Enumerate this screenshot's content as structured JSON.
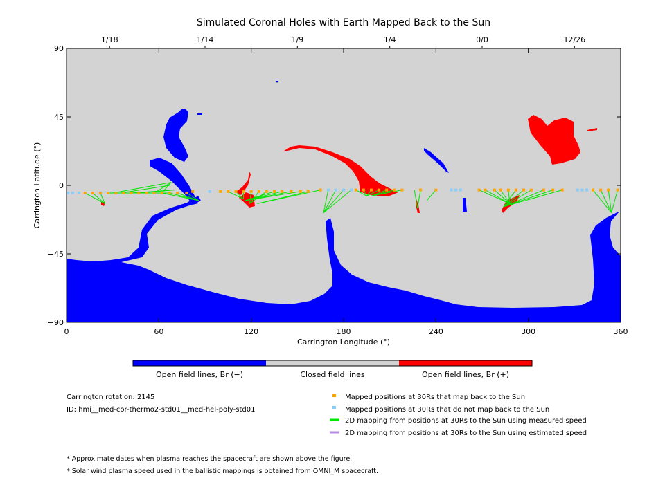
{
  "chart_data": {
    "type": "map",
    "title": "Simulated Coronal Holes with Earth Mapped Back to the Sun",
    "xlabel": "Carrington Longitude (°)",
    "ylabel": "Carrington Latitude (°)",
    "xlim": [
      0,
      360
    ],
    "ylim": [
      -90,
      90
    ],
    "x_ticks": [
      0,
      60,
      120,
      180,
      240,
      300,
      360
    ],
    "y_ticks": [
      90,
      45,
      0,
      -45,
      -90
    ],
    "y_tick_labels": [
      "90",
      "45",
      "0",
      "−45",
      "−90"
    ],
    "top_axis": {
      "labels": [
        "1/18",
        "1/14",
        "1/9",
        "1/4",
        "0/0",
        "12/26"
      ],
      "longitudes": [
        28,
        90,
        150,
        210,
        270,
        330
      ]
    },
    "colors": {
      "negative": "#0000ff",
      "closed": "#d3d3d3",
      "positive": "#ff0000",
      "mapped": "#ffa500",
      "unmapped": "#87cefa",
      "measured": "#00e600",
      "estimated": "#b987ee"
    },
    "colorbar": {
      "labels": [
        "Open field lines, Br (−)",
        "Closed field lines",
        "Open field lines, Br (+)"
      ]
    },
    "mapped_points": [
      [
        12,
        -5
      ],
      [
        17,
        -5
      ],
      [
        22,
        -5
      ],
      [
        27,
        -5
      ],
      [
        32,
        -5
      ],
      [
        37,
        -5
      ],
      [
        42,
        -5
      ],
      [
        47,
        -5
      ],
      [
        52,
        -5
      ],
      [
        57,
        -5
      ],
      [
        62,
        -5
      ],
      [
        67,
        -5
      ],
      [
        72,
        -5
      ],
      [
        78,
        -5
      ],
      [
        82,
        -4
      ],
      [
        100,
        -4
      ],
      [
        105,
        -4
      ],
      [
        110,
        -4
      ],
      [
        115,
        -4
      ],
      [
        120,
        -4
      ],
      [
        125,
        -4
      ],
      [
        130,
        -4
      ],
      [
        135,
        -4
      ],
      [
        140,
        -4
      ],
      [
        146,
        -4
      ],
      [
        152,
        -4
      ],
      [
        157,
        -4
      ],
      [
        165,
        -3
      ],
      [
        188,
        -3
      ],
      [
        193,
        -3
      ],
      [
        198,
        -3
      ],
      [
        203,
        -3
      ],
      [
        208,
        -3
      ],
      [
        213,
        -3
      ],
      [
        218,
        -3
      ],
      [
        230,
        -3
      ],
      [
        240,
        -3
      ],
      [
        268,
        -3
      ],
      [
        272,
        -3
      ],
      [
        278,
        -3
      ],
      [
        282,
        -3
      ],
      [
        287,
        -3
      ],
      [
        292,
        -3
      ],
      [
        297,
        -3
      ],
      [
        302,
        -3
      ],
      [
        310,
        -3
      ],
      [
        316,
        -3
      ],
      [
        322,
        -3
      ],
      [
        342,
        -3
      ],
      [
        347,
        -3
      ],
      [
        352,
        -3
      ],
      [
        358,
        -3
      ]
    ],
    "unmapped_points": [
      [
        1,
        -5
      ],
      [
        4,
        -5
      ],
      [
        8,
        -5
      ],
      [
        93,
        -4
      ],
      [
        170,
        -3
      ],
      [
        175,
        -3
      ],
      [
        180,
        -3
      ],
      [
        185,
        -3
      ],
      [
        250,
        -3
      ],
      [
        253,
        -3
      ],
      [
        256,
        -3
      ],
      [
        332,
        -3
      ],
      [
        335,
        -3
      ],
      [
        338,
        -3
      ]
    ],
    "measured_lines": [
      [
        [
          12,
          -5
        ],
        [
          25,
          -12
        ]
      ],
      [
        [
          17,
          -5
        ],
        [
          25,
          -12
        ]
      ],
      [
        [
          22,
          -5
        ],
        [
          25,
          -12
        ]
      ],
      [
        [
          27,
          -5
        ],
        [
          68,
          -5
        ]
      ],
      [
        [
          32,
          -5
        ],
        [
          68,
          -5
        ]
      ],
      [
        [
          37,
          -5
        ],
        [
          68,
          -5
        ]
      ],
      [
        [
          42,
          -5
        ],
        [
          70,
          -3
        ]
      ],
      [
        [
          47,
          -5
        ],
        [
          70,
          -3
        ]
      ],
      [
        [
          52,
          -5
        ],
        [
          68,
          -5
        ]
      ],
      [
        [
          57,
          -5
        ],
        [
          68,
          2
        ]
      ],
      [
        [
          62,
          -5
        ],
        [
          68,
          2
        ]
      ],
      [
        [
          30,
          -5
        ],
        [
          68,
          2
        ]
      ],
      [
        [
          35,
          -5
        ],
        [
          67,
          0
        ]
      ],
      [
        [
          78,
          -5
        ],
        [
          86,
          -10
        ]
      ],
      [
        [
          72,
          -5
        ],
        [
          86,
          -10
        ]
      ],
      [
        [
          67,
          -5
        ],
        [
          86,
          -10
        ]
      ],
      [
        [
          62,
          -5
        ],
        [
          86,
          -10
        ]
      ],
      [
        [
          105,
          -4
        ],
        [
          115,
          -9
        ]
      ],
      [
        [
          110,
          -4
        ],
        [
          115,
          -9
        ]
      ],
      [
        [
          115,
          -4
        ],
        [
          115,
          -9
        ]
      ],
      [
        [
          120,
          -4
        ],
        [
          119,
          -12
        ]
      ],
      [
        [
          125,
          -4
        ],
        [
          119,
          -12
        ]
      ],
      [
        [
          130,
          -4
        ],
        [
          119,
          -12
        ]
      ],
      [
        [
          135,
          -4
        ],
        [
          116,
          -10
        ]
      ],
      [
        [
          140,
          -4
        ],
        [
          116,
          -10
        ]
      ],
      [
        [
          146,
          -4
        ],
        [
          116,
          -10
        ]
      ],
      [
        [
          152,
          -4
        ],
        [
          116,
          -10
        ]
      ],
      [
        [
          157,
          -4
        ],
        [
          124,
          -12
        ]
      ],
      [
        [
          165,
          -3
        ],
        [
          124,
          -12
        ]
      ],
      [
        [
          170,
          -3
        ],
        [
          167,
          -18
        ]
      ],
      [
        [
          175,
          -3
        ],
        [
          167,
          -18
        ]
      ],
      [
        [
          180,
          -3
        ],
        [
          167,
          -18
        ]
      ],
      [
        [
          185,
          -3
        ],
        [
          167,
          -18
        ]
      ],
      [
        [
          188,
          -3
        ],
        [
          195,
          -7
        ]
      ],
      [
        [
          193,
          -3
        ],
        [
          195,
          -7
        ]
      ],
      [
        [
          198,
          -3
        ],
        [
          195,
          -7
        ]
      ],
      [
        [
          203,
          -3
        ],
        [
          195,
          -7
        ]
      ],
      [
        [
          208,
          -3
        ],
        [
          198,
          -7
        ]
      ],
      [
        [
          213,
          -3
        ],
        [
          198,
          -7
        ]
      ],
      [
        [
          218,
          -3
        ],
        [
          198,
          -7
        ]
      ],
      [
        [
          226,
          -3
        ],
        [
          228,
          -15
        ]
      ],
      [
        [
          230,
          -3
        ],
        [
          228,
          -15
        ]
      ],
      [
        [
          240,
          -3
        ],
        [
          234,
          -10
        ]
      ],
      [
        [
          268,
          -3
        ],
        [
          288,
          -12
        ]
      ],
      [
        [
          272,
          -3
        ],
        [
          288,
          -12
        ]
      ],
      [
        [
          278,
          -3
        ],
        [
          288,
          -12
        ]
      ],
      [
        [
          282,
          -3
        ],
        [
          288,
          -12
        ]
      ],
      [
        [
          287,
          -3
        ],
        [
          288,
          -12
        ]
      ],
      [
        [
          292,
          -3
        ],
        [
          284,
          -14
        ]
      ],
      [
        [
          297,
          -3
        ],
        [
          284,
          -14
        ]
      ],
      [
        [
          302,
          -3
        ],
        [
          284,
          -14
        ]
      ],
      [
        [
          310,
          -3
        ],
        [
          284,
          -14
        ]
      ],
      [
        [
          316,
          -3
        ],
        [
          284,
          -14
        ]
      ],
      [
        [
          322,
          -3
        ],
        [
          284,
          -14
        ]
      ],
      [
        [
          342,
          -3
        ],
        [
          354,
          -18
        ]
      ],
      [
        [
          347,
          -3
        ],
        [
          354,
          -18
        ]
      ],
      [
        [
          352,
          -3
        ],
        [
          354,
          -18
        ]
      ],
      [
        [
          358,
          -3
        ],
        [
          354,
          -18
        ]
      ]
    ],
    "legend_placement": "bottom-right"
  },
  "info": {
    "rotation": "Carrington rotation: 2145",
    "id": "ID: hmi__med-cor-thermo2-std01__med-hel-poly-std01"
  },
  "legend": {
    "mapped": "Mapped positions at 30Rs that map back to the Sun",
    "unmapped": "Mapped positions at 30Rs that do not map back to the Sun",
    "measured": "2D mapping from positions at 30Rs to the Sun using measured speed",
    "estimated": "2D mapping from positions at 30Rs to the Sun using estimated speed"
  },
  "notes": [
    "* Approximate dates when plasma reaches the spacecraft are shown above the figure.",
    "* Solar wind plasma speed used in the ballistic mappings is obtained from OMNI_M spacecraft."
  ]
}
